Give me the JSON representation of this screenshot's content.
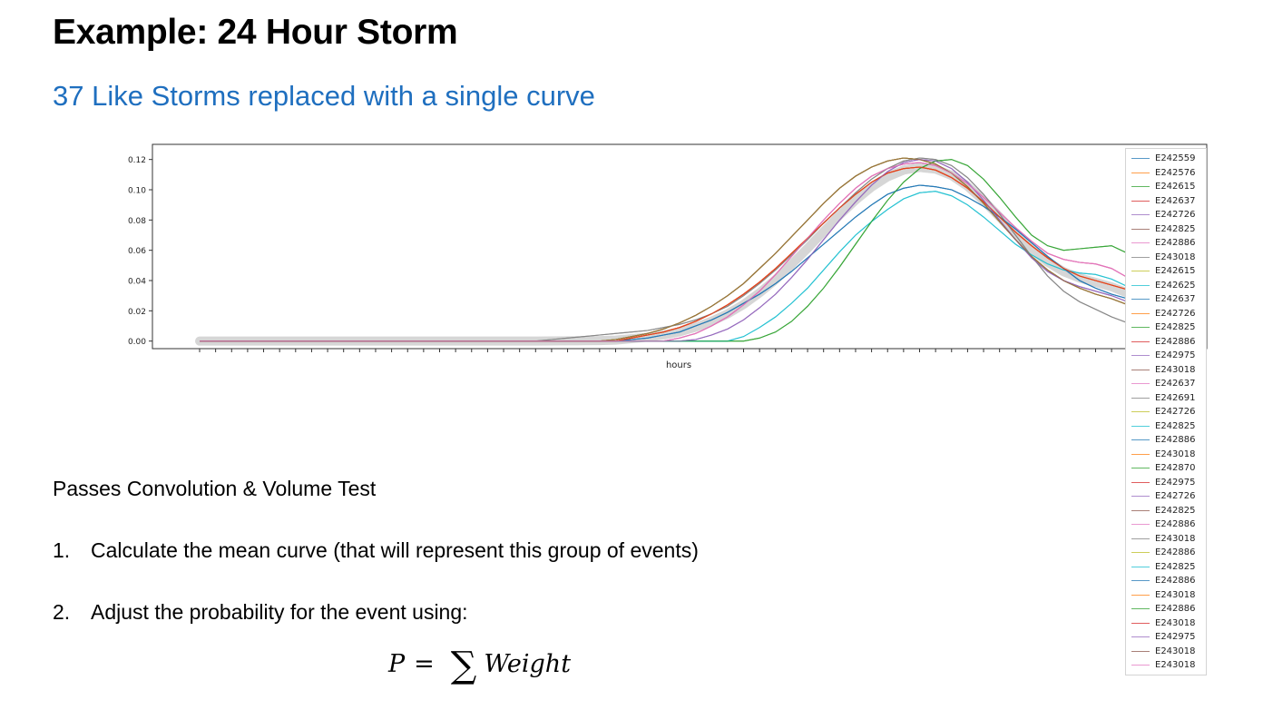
{
  "slide": {
    "title": "Example: 24 Hour Storm",
    "subtitle": "37 Like Storms replaced with a single curve",
    "passes_text": "Passes Convolution & Volume Test",
    "steps": [
      {
        "num": "1.",
        "text": "Calculate the mean curve (that will represent this group of events)"
      },
      {
        "num": "2.",
        "text": "Adjust the probability for the event using:"
      }
    ],
    "formula": {
      "lhs": "P",
      "eq": "=",
      "sum": "∑",
      "rhs": "Weight"
    }
  },
  "chart_data": {
    "type": "line",
    "title": "",
    "xlabel": "hours",
    "ylabel": "",
    "ylim": [
      -0.005,
      0.13
    ],
    "yticks": [
      "0.00",
      "0.02",
      "0.04",
      "0.06",
      "0.08",
      "0.10",
      "0.12"
    ],
    "x_tick_count": 61,
    "grid": false,
    "legend_position": "right",
    "x": [
      0,
      1,
      2,
      3,
      4,
      5,
      6,
      7,
      8,
      9,
      10,
      11,
      12,
      13,
      14,
      15,
      16,
      17,
      18,
      19,
      20,
      21,
      22,
      23,
      24,
      25,
      26,
      27,
      28,
      29,
      30,
      31,
      32,
      33,
      34,
      35,
      36,
      37,
      38,
      39,
      40,
      41,
      42,
      43,
      44,
      45,
      46,
      47,
      48,
      49,
      50,
      51,
      52,
      53,
      54,
      55,
      56,
      57,
      58,
      59,
      60
    ],
    "series": [
      {
        "name": "E242559",
        "color": "#1f77b4",
        "shape": "A"
      },
      {
        "name": "E242576",
        "color": "#ff7f0e",
        "shape": "B"
      },
      {
        "name": "E242615",
        "color": "#2ca02c",
        "shape": "C"
      },
      {
        "name": "E242637",
        "color": "#d62728",
        "shape": "B"
      },
      {
        "name": "E242726",
        "color": "#9467bd",
        "shape": "D"
      },
      {
        "name": "E242825",
        "color": "#8c564b",
        "shape": "C"
      },
      {
        "name": "E242886",
        "color": "#e377c2",
        "shape": "E"
      },
      {
        "name": "E243018",
        "color": "#7f7f7f",
        "shape": "F"
      },
      {
        "name": "E242615",
        "color": "#bcbd22",
        "shape": "C"
      },
      {
        "name": "E242625",
        "color": "#17becf",
        "shape": "G"
      },
      {
        "name": "E242637",
        "color": "#1f77b4",
        "shape": "A"
      },
      {
        "name": "E242726",
        "color": "#ff7f0e",
        "shape": "B"
      },
      {
        "name": "E242825",
        "color": "#2ca02c",
        "shape": "H"
      },
      {
        "name": "E242886",
        "color": "#d62728",
        "shape": "E"
      },
      {
        "name": "E242975",
        "color": "#9467bd",
        "shape": "D"
      },
      {
        "name": "E243018",
        "color": "#8c564b",
        "shape": "C"
      },
      {
        "name": "E242637",
        "color": "#e377c2",
        "shape": "E"
      },
      {
        "name": "E242691",
        "color": "#7f7f7f",
        "shape": "F"
      },
      {
        "name": "E242726",
        "color": "#bcbd22",
        "shape": "C"
      },
      {
        "name": "E242825",
        "color": "#17becf",
        "shape": "G"
      },
      {
        "name": "E242886",
        "color": "#1f77b4",
        "shape": "A"
      },
      {
        "name": "E243018",
        "color": "#ff7f0e",
        "shape": "B"
      },
      {
        "name": "E242870",
        "color": "#2ca02c",
        "shape": "H"
      },
      {
        "name": "E242975",
        "color": "#d62728",
        "shape": "B"
      },
      {
        "name": "E242726",
        "color": "#9467bd",
        "shape": "D"
      },
      {
        "name": "E242825",
        "color": "#8c564b",
        "shape": "C"
      },
      {
        "name": "E242886",
        "color": "#e377c2",
        "shape": "E"
      },
      {
        "name": "E243018",
        "color": "#7f7f7f",
        "shape": "F"
      },
      {
        "name": "E242886",
        "color": "#bcbd22",
        "shape": "C"
      },
      {
        "name": "E242825",
        "color": "#17becf",
        "shape": "G"
      },
      {
        "name": "E242886",
        "color": "#1f77b4",
        "shape": "A"
      },
      {
        "name": "E243018",
        "color": "#ff7f0e",
        "shape": "B"
      },
      {
        "name": "E242886",
        "color": "#2ca02c",
        "shape": "H"
      },
      {
        "name": "E243018",
        "color": "#d62728",
        "shape": "B"
      },
      {
        "name": "E242975",
        "color": "#9467bd",
        "shape": "D"
      },
      {
        "name": "E243018",
        "color": "#8c564b",
        "shape": "C"
      },
      {
        "name": "E243018",
        "color": "#e377c2",
        "shape": "E"
      }
    ],
    "shapes": {
      "A": [
        0,
        0,
        0,
        0,
        0,
        0,
        0,
        0,
        0,
        0,
        0,
        0,
        0,
        0,
        0,
        0,
        0,
        0,
        0,
        0,
        0,
        0,
        0,
        0,
        0,
        0,
        0,
        0.001,
        0.002,
        0.004,
        0.006,
        0.01,
        0.014,
        0.019,
        0.025,
        0.031,
        0.038,
        0.046,
        0.055,
        0.064,
        0.073,
        0.082,
        0.09,
        0.097,
        0.101,
        0.103,
        0.102,
        0.1,
        0.095,
        0.089,
        0.082,
        0.074,
        0.065,
        0.056,
        0.048,
        0.04,
        0.035,
        0.031,
        0.028,
        0.025,
        0.022
      ],
      "B": [
        0,
        0,
        0,
        0,
        0,
        0,
        0,
        0,
        0,
        0,
        0,
        0,
        0,
        0,
        0,
        0,
        0,
        0,
        0,
        0,
        0,
        0,
        0,
        0,
        0,
        0,
        0,
        0.002,
        0.004,
        0.006,
        0.009,
        0.013,
        0.018,
        0.024,
        0.031,
        0.039,
        0.048,
        0.058,
        0.068,
        0.078,
        0.088,
        0.097,
        0.105,
        0.111,
        0.114,
        0.115,
        0.113,
        0.108,
        0.101,
        0.092,
        0.082,
        0.072,
        0.063,
        0.055,
        0.048,
        0.043,
        0.04,
        0.037,
        0.034,
        0.028,
        0.018
      ],
      "C": [
        0,
        0,
        0,
        0,
        0,
        0,
        0,
        0,
        0,
        0,
        0,
        0,
        0,
        0,
        0,
        0,
        0,
        0,
        0,
        0,
        0,
        0,
        0,
        0,
        0,
        0,
        0.001,
        0.003,
        0.005,
        0.008,
        0.012,
        0.017,
        0.023,
        0.03,
        0.038,
        0.048,
        0.058,
        0.069,
        0.08,
        0.091,
        0.101,
        0.109,
        0.115,
        0.119,
        0.121,
        0.12,
        0.117,
        0.111,
        0.102,
        0.091,
        0.079,
        0.067,
        0.056,
        0.047,
        0.04,
        0.035,
        0.031,
        0.028,
        0.024,
        0.017,
        0.01
      ],
      "D": [
        0,
        0,
        0,
        0,
        0,
        0,
        0,
        0,
        0,
        0,
        0,
        0,
        0,
        0,
        0,
        0,
        0,
        0,
        0,
        0,
        0,
        0,
        0,
        0,
        0,
        0,
        0,
        0,
        0,
        0,
        0,
        0.001,
        0.004,
        0.008,
        0.014,
        0.022,
        0.031,
        0.042,
        0.054,
        0.067,
        0.08,
        0.092,
        0.103,
        0.112,
        0.118,
        0.12,
        0.119,
        0.114,
        0.105,
        0.093,
        0.08,
        0.067,
        0.055,
        0.046,
        0.04,
        0.036,
        0.033,
        0.03,
        0.026,
        0.02,
        0.014
      ],
      "E": [
        0,
        0,
        0,
        0,
        0,
        0,
        0,
        0,
        0,
        0,
        0,
        0,
        0,
        0,
        0,
        0,
        0,
        0,
        0,
        0,
        0,
        0,
        0,
        0,
        0,
        0,
        0,
        0,
        0,
        0,
        0.002,
        0.005,
        0.01,
        0.016,
        0.024,
        0.033,
        0.044,
        0.056,
        0.068,
        0.08,
        0.091,
        0.101,
        0.109,
        0.114,
        0.117,
        0.118,
        0.116,
        0.111,
        0.104,
        0.095,
        0.085,
        0.075,
        0.066,
        0.058,
        0.054,
        0.052,
        0.051,
        0.048,
        0.042,
        0.032,
        0.022
      ],
      "F": [
        0,
        0,
        0,
        0,
        0,
        0,
        0,
        0,
        0,
        0,
        0,
        0,
        0,
        0,
        0,
        0,
        0,
        0,
        0,
        0,
        0,
        0,
        0.001,
        0.002,
        0.003,
        0.004,
        0.005,
        0.006,
        0.007,
        0.009,
        0.011,
        0.014,
        0.018,
        0.023,
        0.03,
        0.038,
        0.047,
        0.057,
        0.067,
        0.078,
        0.088,
        0.098,
        0.107,
        0.114,
        0.119,
        0.121,
        0.12,
        0.116,
        0.108,
        0.097,
        0.084,
        0.07,
        0.056,
        0.043,
        0.033,
        0.026,
        0.021,
        0.016,
        0.012,
        0.008,
        0.004
      ],
      "G": [
        0,
        0,
        0,
        0,
        0,
        0,
        0,
        0,
        0,
        0,
        0,
        0,
        0,
        0,
        0,
        0,
        0,
        0,
        0,
        0,
        0,
        0,
        0,
        0,
        0,
        0,
        0,
        0,
        0,
        0,
        0,
        0,
        0,
        0,
        0.003,
        0.009,
        0.016,
        0.025,
        0.035,
        0.047,
        0.059,
        0.07,
        0.079,
        0.087,
        0.094,
        0.098,
        0.099,
        0.096,
        0.09,
        0.082,
        0.073,
        0.064,
        0.057,
        0.051,
        0.047,
        0.045,
        0.044,
        0.041,
        0.036,
        0.028,
        0.02
      ],
      "H": [
        0,
        0,
        0,
        0,
        0,
        0,
        0,
        0,
        0,
        0,
        0,
        0,
        0,
        0,
        0,
        0,
        0,
        0,
        0,
        0,
        0,
        0,
        0,
        0,
        0,
        0,
        0,
        0,
        0,
        0,
        0,
        0,
        0,
        0,
        0,
        0.002,
        0.006,
        0.013,
        0.023,
        0.035,
        0.049,
        0.064,
        0.079,
        0.093,
        0.105,
        0.114,
        0.119,
        0.12,
        0.116,
        0.107,
        0.095,
        0.082,
        0.07,
        0.063,
        0.06,
        0.061,
        0.062,
        0.063,
        0.058,
        0.045,
        0.03
      ]
    },
    "mean_band": {
      "color": "#bbbbbb",
      "opacity": 0.6
    }
  }
}
